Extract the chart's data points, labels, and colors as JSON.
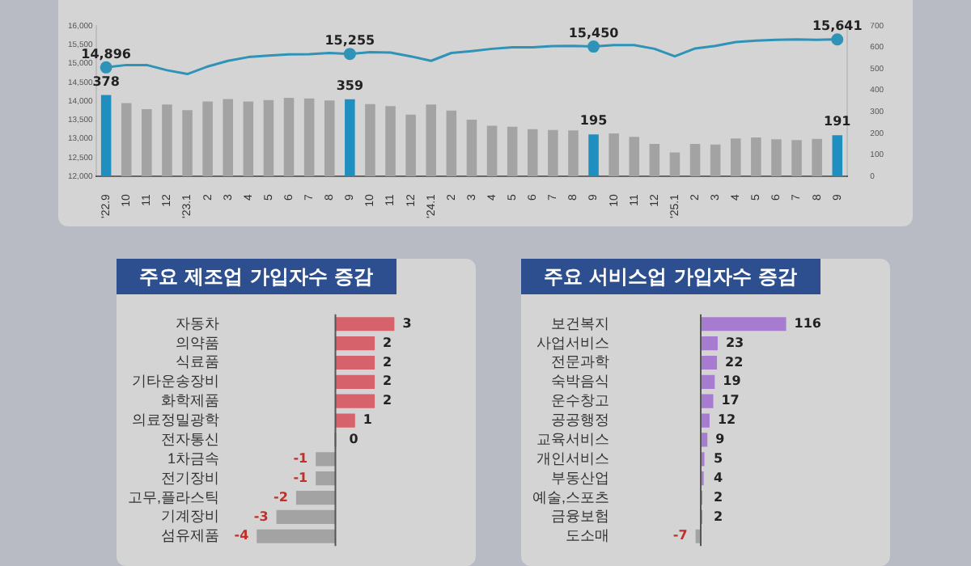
{
  "chart_data": [
    {
      "type": "bar",
      "categories": [
        "'22.9",
        "10",
        "11",
        "12",
        "'23.1",
        "2",
        "3",
        "4",
        "5",
        "6",
        "7",
        "8",
        "9",
        "10",
        "11",
        "12",
        "'24.1",
        "2",
        "3",
        "4",
        "5",
        "6",
        "7",
        "8",
        "9",
        "10",
        "11",
        "12",
        "'25.1",
        "2",
        "3",
        "4",
        "5",
        "6",
        "7",
        "8",
        "9"
      ],
      "series": [
        {
          "type": "bar",
          "axis": "y2",
          "color": "#a3a3a3",
          "colors": [
            "#1f8fc0",
            "#a3a3a3",
            "#a3a3a3",
            "#a3a3a3",
            "#a3a3a3",
            "#a3a3a3",
            "#a3a3a3",
            "#a3a3a3",
            "#a3a3a3",
            "#a3a3a3",
            "#a3a3a3",
            "#a3a3a3",
            "#1f8fc0",
            "#a3a3a3",
            "#a3a3a3",
            "#a3a3a3",
            "#a3a3a3",
            "#a3a3a3",
            "#a3a3a3",
            "#a3a3a3",
            "#a3a3a3",
            "#a3a3a3",
            "#a3a3a3",
            "#a3a3a3",
            "#1f8fc0",
            "#a3a3a3",
            "#a3a3a3",
            "#a3a3a3",
            "#a3a3a3",
            "#a3a3a3",
            "#a3a3a3",
            "#a3a3a3",
            "#a3a3a3",
            "#a3a3a3",
            "#a3a3a3",
            "#a3a3a3",
            "#1f8fc0"
          ],
          "values": [
            378,
            341,
            313,
            334,
            308,
            348,
            360,
            348,
            355,
            365,
            362,
            353,
            359,
            336,
            327,
            287,
            334,
            306,
            264,
            235,
            231,
            219,
            216,
            214,
            195,
            200,
            184,
            151,
            111,
            151,
            148,
            176,
            181,
            172,
            169,
            174,
            191
          ],
          "value_labels": [
            "378",
            null,
            null,
            null,
            null,
            null,
            null,
            null,
            null,
            null,
            null,
            null,
            "359",
            null,
            null,
            null,
            null,
            null,
            null,
            null,
            null,
            null,
            null,
            null,
            "195",
            null,
            null,
            null,
            null,
            null,
            null,
            null,
            null,
            null,
            null,
            null,
            "191"
          ]
        },
        {
          "type": "line",
          "axis": "y",
          "color": "#2f93b8",
          "values": [
            14896,
            14960,
            14960,
            14820,
            14720,
            14920,
            15070,
            15170,
            15210,
            15240,
            15250,
            15280,
            15255,
            15300,
            15290,
            15190,
            15070,
            15280,
            15330,
            15390,
            15430,
            15430,
            15460,
            15470,
            15450,
            15490,
            15490,
            15390,
            15190,
            15400,
            15470,
            15570,
            15610,
            15630,
            15640,
            15630,
            15641
          ],
          "value_labels": [
            "14,896",
            null,
            null,
            null,
            null,
            null,
            null,
            null,
            null,
            null,
            null,
            null,
            "15,255",
            null,
            null,
            null,
            null,
            null,
            null,
            null,
            null,
            null,
            null,
            null,
            "15,450",
            null,
            null,
            null,
            null,
            null,
            null,
            null,
            null,
            null,
            null,
            null,
            "15,641"
          ]
        }
      ],
      "ylim": [
        12000,
        16000
      ],
      "yticks": [
        {
          "value": 12000,
          "label": "12,000"
        },
        {
          "value": 12500,
          "label": "12,500"
        },
        {
          "value": 13000,
          "label": "13,000"
        },
        {
          "value": 13500,
          "label": "13,500"
        },
        {
          "value": 14000,
          "label": "14,000"
        },
        {
          "value": 14500,
          "label": "14,500"
        },
        {
          "value": 15000,
          "label": "15,000"
        },
        {
          "value": 15500,
          "label": "15,500"
        },
        {
          "value": 16000,
          "label": "16,000"
        }
      ],
      "y2lim": [
        0,
        700
      ],
      "y2ticks": [
        0,
        100,
        200,
        300,
        400,
        500,
        600,
        700
      ],
      "grid": false,
      "legend": false
    },
    {
      "type": "bar",
      "orientation": "horizontal",
      "title": "주요 제조업 가입자수 증감",
      "categories": [
        "자동차",
        "의약품",
        "식료품",
        "기타운송장비",
        "화학제품",
        "의료정밀광학",
        "전자통신",
        "1차금속",
        "전기장비",
        "고무,플라스틱",
        "기계장비",
        "섬유제품"
      ],
      "values": [
        3,
        2,
        2,
        2,
        2,
        1,
        0,
        -1,
        -1,
        -2,
        -3,
        -4
      ],
      "colors": [
        "#d6636b",
        "#d6636b",
        "#d6636b",
        "#d6636b",
        "#d6636b",
        "#d6636b",
        "#d6636b",
        "#a3a3a3",
        "#a3a3a3",
        "#a3a3a3",
        "#a3a3a3",
        "#a3a3a3"
      ],
      "data_labels": true,
      "tick_labels": "y",
      "grid": false,
      "legend": false
    },
    {
      "type": "bar",
      "orientation": "horizontal",
      "title": "주요 서비스업 가입자수 증감",
      "categories": [
        "보건복지",
        "사업서비스",
        "전문과학",
        "숙박음식",
        "운수창고",
        "공공행정",
        "교육서비스",
        "개인서비스",
        "부동산업",
        "예술,스포츠",
        "금융보험",
        "도소매"
      ],
      "values": [
        116,
        23,
        22,
        19,
        17,
        12,
        9,
        5,
        4,
        2,
        2,
        -7
      ],
      "colors": [
        "#a77bd0",
        "#a77bd0",
        "#a77bd0",
        "#a77bd0",
        "#a77bd0",
        "#a77bd0",
        "#a77bd0",
        "#a77bd0",
        "#a77bd0",
        "#a77bd0",
        "#a77bd0",
        "#a3a3a3"
      ],
      "data_labels": true,
      "tick_labels": "y",
      "grid": false,
      "legend": false
    }
  ]
}
